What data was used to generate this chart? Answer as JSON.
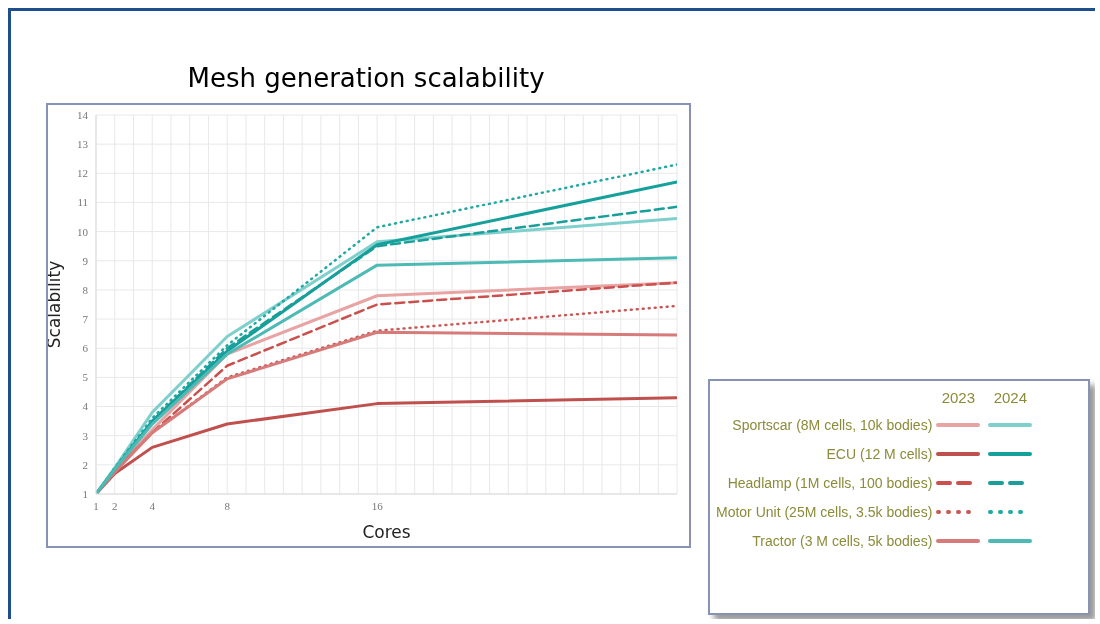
{
  "chart_data": {
    "type": "line",
    "title": "Mesh generation scalability",
    "xlabel": "Cores",
    "ylabel": "Scalability",
    "x": [
      1,
      2,
      4,
      8,
      16,
      32
    ],
    "xlim": [
      1,
      32
    ],
    "xticks": [
      1,
      2,
      {
        "value": 3,
        "label": null
      },
      4,
      {
        "value": 5,
        "label": null
      },
      {
        "value": 6,
        "label": null
      },
      {
        "value": 7,
        "label": null
      },
      8,
      {
        "value": 9,
        "label": null
      },
      {
        "value": 10,
        "label": null
      },
      {
        "value": 11,
        "label": null
      },
      {
        "value": 12,
        "label": null
      },
      {
        "value": 13,
        "label": null
      },
      {
        "value": 14,
        "label": null
      },
      {
        "value": 15,
        "label": null
      },
      16,
      {
        "value": 17,
        "label": null
      },
      {
        "value": 18,
        "label": null
      },
      {
        "value": 19,
        "label": null
      },
      {
        "value": 20,
        "label": null
      },
      {
        "value": 21,
        "label": null
      },
      {
        "value": 22,
        "label": null
      },
      {
        "value": 23,
        "label": null
      },
      {
        "value": 24,
        "label": null
      },
      {
        "value": 25,
        "label": null
      },
      {
        "value": 26,
        "label": null
      },
      {
        "value": 27,
        "label": null
      },
      {
        "value": 28,
        "label": null
      },
      {
        "value": 29,
        "label": null
      },
      {
        "value": 30,
        "label": null
      },
      {
        "value": 31,
        "label": null
      },
      {
        "value": 32,
        "label": null
      }
    ],
    "ylim": [
      1,
      14
    ],
    "yticks": [
      1,
      2,
      3,
      4,
      5,
      6,
      7,
      8,
      9,
      10,
      11,
      12,
      13,
      14
    ],
    "grid": true,
    "legend": "bottom right",
    "annotations": [
      "2023",
      "2024"
    ],
    "series": [
      {
        "name": "Sportscar (8M cells,  10k bodies)",
        "color": "#e8a3a3",
        "line_style": "solid",
        "values": [
          1,
          1.8,
          3.2,
          5.8,
          7.8,
          8.25
        ]
      },
      {
        "name": "ECU (12 M cells)",
        "color": "#c0504d",
        "line_style": "solid",
        "values": [
          1,
          1.7,
          2.6,
          3.4,
          4.1,
          4.3
        ]
      },
      {
        "name": "Headlamp (1M cells,  100 bodies)",
        "color": "#c9504d",
        "line_style": "dashed",
        "values": [
          1,
          1.8,
          3.1,
          5.4,
          7.5,
          8.25
        ]
      },
      {
        "name": "Motor Unit (25M cells,  3.5k bodies)",
        "color": "#c75a57",
        "line_style": "dotted",
        "values": [
          1,
          1.8,
          3.1,
          5.0,
          6.6,
          7.45
        ]
      },
      {
        "name": "Tractor (3 M cells,  5k bodies)",
        "color": "#d77a7a",
        "line_style": "solid",
        "values": [
          1,
          1.75,
          3.1,
          4.95,
          6.55,
          6.45
        ]
      },
      {
        "color": "#7fd0cd",
        "line_style": "solid",
        "values": [
          1,
          1.9,
          3.8,
          6.4,
          9.65,
          10.45
        ]
      },
      {
        "color": "#15a09c",
        "line_style": "solid",
        "values": [
          1,
          1.85,
          3.5,
          5.9,
          9.55,
          11.7
        ]
      },
      {
        "color": "#1a9e9a",
        "line_style": "dashed",
        "values": [
          1,
          1.85,
          3.5,
          6.0,
          9.5,
          10.85
        ]
      },
      {
        "color": "#20a8a4",
        "line_style": "dotted",
        "values": [
          1,
          1.9,
          3.6,
          6.1,
          10.15,
          12.3
        ]
      },
      {
        "color": "#4dbab6",
        "line_style": "solid",
        "values": [
          1,
          1.85,
          3.4,
          5.8,
          8.85,
          9.1
        ]
      }
    ]
  }
}
